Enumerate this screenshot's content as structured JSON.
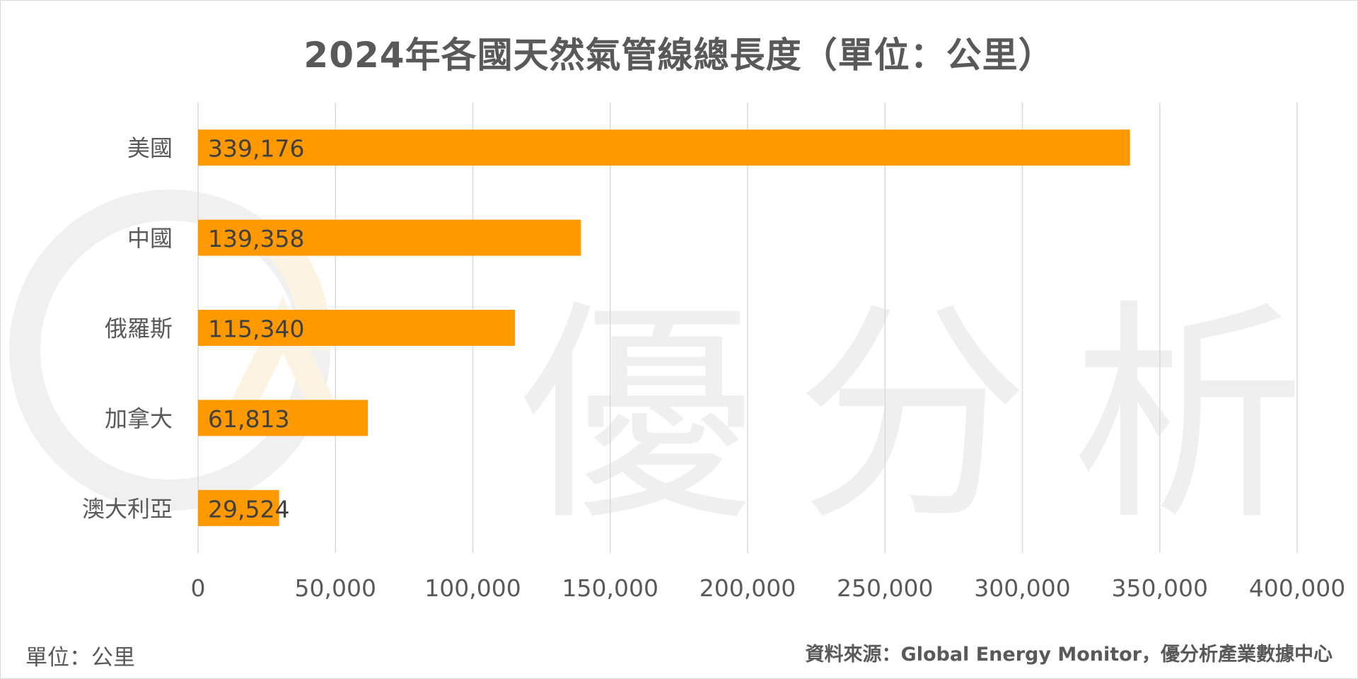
{
  "title": "2024年各國天然氣管線總長度（單位：公里）",
  "footer": {
    "unit_note": "單位：公里",
    "source": "資料來源：Global Energy Monitor，優分析產業數據中心"
  },
  "watermark": {
    "text": "優分析"
  },
  "colors": {
    "bar": "#FF9900",
    "grid": "#d9d9d9",
    "text": "#595959",
    "value_label": "#404040"
  },
  "chart_data": {
    "type": "bar",
    "orientation": "horizontal",
    "categories": [
      "美國",
      "中國",
      "俄羅斯",
      "加拿大",
      "澳大利亞"
    ],
    "values": [
      339176,
      139358,
      115340,
      61813,
      29524
    ],
    "value_labels": [
      "339,176",
      "139,358",
      "115,340",
      "61,813",
      "29,524"
    ],
    "xlim": [
      0,
      400000
    ],
    "x_ticks": [
      0,
      50000,
      100000,
      150000,
      200000,
      250000,
      300000,
      350000,
      400000
    ],
    "x_tick_labels": [
      "0",
      "50,000",
      "100,000",
      "150,000",
      "200,000",
      "250,000",
      "300,000",
      "350,000",
      "400,000"
    ],
    "grid": "vertical",
    "legend": "none"
  }
}
